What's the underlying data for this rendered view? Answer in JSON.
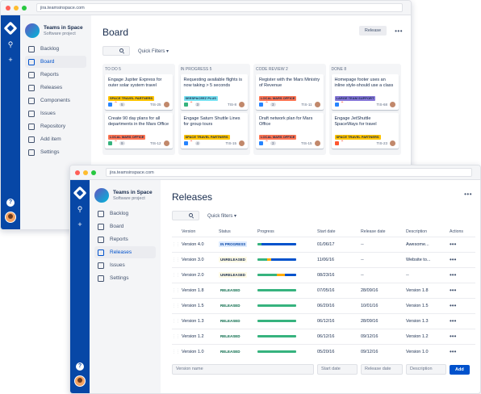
{
  "browser_back": {
    "url": "jira.teamsinspace.com"
  },
  "browser_front": {
    "url": "jira.teamsinspace.com"
  },
  "project": {
    "name": "Teams in Space",
    "type": "Software project"
  },
  "board_window": {
    "nav": [
      "Backlog",
      "Board",
      "Reports",
      "Releases",
      "Components",
      "Issues",
      "Repository",
      "Add item",
      "Settings"
    ],
    "active_nav": "Board",
    "title": "Board",
    "release_button": "Release",
    "quick_filters": "Quick Filters",
    "columns": [
      {
        "header": "TO DO 5",
        "cards": [
          {
            "title": "Engage Jupiter Express for outer solar system travel",
            "label": "SPACE TRAVEL PARTNERS",
            "label_color": "#ffc400",
            "type_color": "#2684ff",
            "estimate": "5",
            "key": "TIS-25"
          },
          {
            "title": "Create 90 day plans for all departments in the Mars Office",
            "label": "LOCAL MARS OFFICE",
            "label_color": "#ff7452",
            "type_color": "#36b37e",
            "estimate": "9",
            "key": "TIS-12"
          }
        ]
      },
      {
        "header": "IN PROGRESS 5",
        "cards": [
          {
            "title": "Requesting available flights is now taking > 5 seconds",
            "label": "SEESPACEEZ PLUS",
            "label_color": "#79e2f2",
            "type_color": "#36b37e",
            "estimate": "3",
            "key": "TIS-8"
          },
          {
            "title": "Engage Saturn Shuttle Lines for group tours",
            "label": "SPACE TRAVEL PARTNERS",
            "label_color": "#ffc400",
            "type_color": "#2684ff",
            "estimate": "4",
            "key": "TIS-15"
          }
        ]
      },
      {
        "header": "CODE REVIEW 2",
        "cards": [
          {
            "title": "Register with the Mars Ministry of Revenue",
            "label": "LOCAL MARS OFFICE",
            "label_color": "#ff7452",
            "type_color": "#2684ff",
            "estimate": "3",
            "key": "TIS-11"
          },
          {
            "title": "Draft network plan for Mars Office",
            "label": "LOCAL MARS OFFICE",
            "label_color": "#ff7452",
            "type_color": "#2684ff",
            "estimate": "3",
            "key": "TIS-15"
          }
        ]
      },
      {
        "header": "DONE 8",
        "cards": [
          {
            "title": "Homepage footer uses an inline style-should use a class",
            "label": "LARGE TEAM SUPPORT",
            "label_color": "#8777d9",
            "type_color": "#2684ff",
            "estimate": "",
            "key": "TIS-68"
          },
          {
            "title": "Engage JetShuttle SpaceWays for travel",
            "label": "SPACE TRAVEL PARTNERS",
            "label_color": "#ffc400",
            "type_color": "#ff5630",
            "estimate": "",
            "key": "TIS-23"
          }
        ]
      }
    ]
  },
  "releases_window": {
    "nav": [
      "Backlog",
      "Board",
      "Reports",
      "Releases",
      "Issues",
      "Settings"
    ],
    "active_nav": "Releases",
    "title": "Releases",
    "quick_filters": "Quick filters",
    "headers": [
      "Version",
      "Status",
      "Progress",
      "Start date",
      "Release date",
      "Description",
      "Actions"
    ],
    "rows": [
      {
        "version": "Version 4.0",
        "status": "IN PROGRESS",
        "status_kind": "inprog",
        "progress": [
          {
            "c": "g",
            "w": 0.1
          },
          {
            "c": "b",
            "w": 0.9
          }
        ],
        "start": "01/06/17",
        "release": "--",
        "desc": "Awesome..."
      },
      {
        "version": "Version 3.0",
        "status": "UNRELEASED",
        "status_kind": "unrel",
        "progress": [
          {
            "c": "g",
            "w": 0.25
          },
          {
            "c": "y",
            "w": 0.1
          },
          {
            "c": "b",
            "w": 0.65
          }
        ],
        "start": "11/06/16",
        "release": "--",
        "desc": "Website to..."
      },
      {
        "version": "Version 2.0",
        "status": "UNRELEASED",
        "status_kind": "unrel",
        "progress": [
          {
            "c": "g",
            "w": 0.5
          },
          {
            "c": "y",
            "w": 0.2
          },
          {
            "c": "b",
            "w": 0.3
          }
        ],
        "start": "08/23/16",
        "release": "--",
        "desc": "--"
      },
      {
        "version": "Version 1.8",
        "status": "RELEASED",
        "status_kind": "released",
        "progress": [
          {
            "c": "g",
            "w": 1
          }
        ],
        "start": "07/05/16",
        "release": "28/09/16",
        "desc": "Version 1.8"
      },
      {
        "version": "Version 1.5",
        "status": "RELEASED",
        "status_kind": "released",
        "progress": [
          {
            "c": "g",
            "w": 1
          }
        ],
        "start": "06/20/16",
        "release": "10/01/16",
        "desc": "Version 1.5"
      },
      {
        "version": "Version 1.3",
        "status": "RELEASED",
        "status_kind": "released",
        "progress": [
          {
            "c": "g",
            "w": 1
          }
        ],
        "start": "06/12/16",
        "release": "28/09/16",
        "desc": "Version 1.3"
      },
      {
        "version": "Version 1.2",
        "status": "RELEASED",
        "status_kind": "released",
        "progress": [
          {
            "c": "g",
            "w": 1
          }
        ],
        "start": "06/12/16",
        "release": "09/12/16",
        "desc": "Version 1.2"
      },
      {
        "version": "Version 1.0",
        "status": "RELEASED",
        "status_kind": "released",
        "progress": [
          {
            "c": "g",
            "w": 1
          }
        ],
        "start": "05/20/16",
        "release": "09/12/16",
        "desc": "Version 1.0"
      }
    ],
    "form": {
      "version_placeholder": "Version name",
      "start_placeholder": "Start date",
      "release_placeholder": "Release date",
      "desc_placeholder": "Description",
      "add_label": "Add"
    }
  }
}
